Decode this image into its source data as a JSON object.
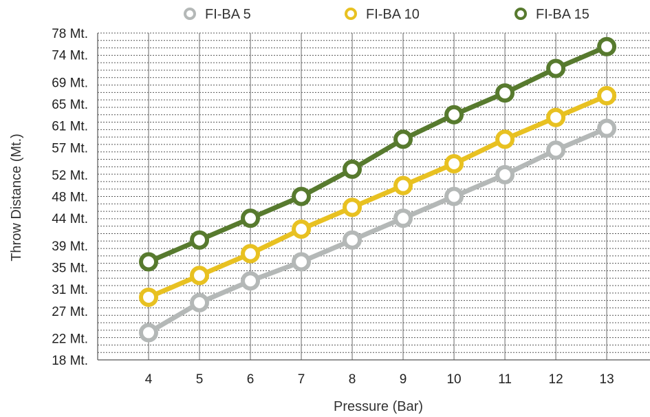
{
  "chart_data": {
    "type": "line",
    "title": "",
    "xlabel": "Pressure (Bar)",
    "ylabel": "Throw Distance (Mt.)",
    "x": [
      4,
      5,
      6,
      7,
      8,
      9,
      10,
      11,
      12,
      13
    ],
    "xticks": [
      "4",
      "5",
      "6",
      "7",
      "8",
      "9",
      "10",
      "11",
      "12",
      "13"
    ],
    "yticks": [
      {
        "value": 18,
        "label": "18 Mt."
      },
      {
        "value": 22,
        "label": "22 Mt."
      },
      {
        "value": 27,
        "label": "27 Mt."
      },
      {
        "value": 31,
        "label": "31 Mt."
      },
      {
        "value": 35,
        "label": "35 Mt."
      },
      {
        "value": 39,
        "label": "39 Mt."
      },
      {
        "value": 44,
        "label": "44 Mt."
      },
      {
        "value": 48,
        "label": "48 Mt."
      },
      {
        "value": 52,
        "label": "52 Mt."
      },
      {
        "value": 57,
        "label": "57 Mt."
      },
      {
        "value": 61,
        "label": "61 Mt."
      },
      {
        "value": 65,
        "label": "65 Mt."
      },
      {
        "value": 69,
        "label": "69 Mt."
      },
      {
        "value": 74,
        "label": "74 Mt."
      },
      {
        "value": 78,
        "label": "78 Mt."
      }
    ],
    "ylim": [
      18,
      78
    ],
    "xlim": [
      3,
      13.85
    ],
    "grid": true,
    "legend_position": "top-center",
    "series": [
      {
        "name": "FI-BA 5",
        "color": "#b4b8b7",
        "values": [
          23,
          28.5,
          32.5,
          36,
          40,
          44,
          48,
          52,
          56.5,
          60.5
        ]
      },
      {
        "name": "FI-BA 10",
        "color": "#e8c121",
        "values": [
          29.5,
          33.5,
          37.5,
          42,
          46,
          50,
          54,
          58.5,
          62.5,
          66.5
        ]
      },
      {
        "name": "FI-BA 15",
        "color": "#577a2e",
        "values": [
          36,
          40,
          44,
          48,
          53,
          58.5,
          63,
          67,
          71.5,
          75.5
        ]
      }
    ]
  }
}
